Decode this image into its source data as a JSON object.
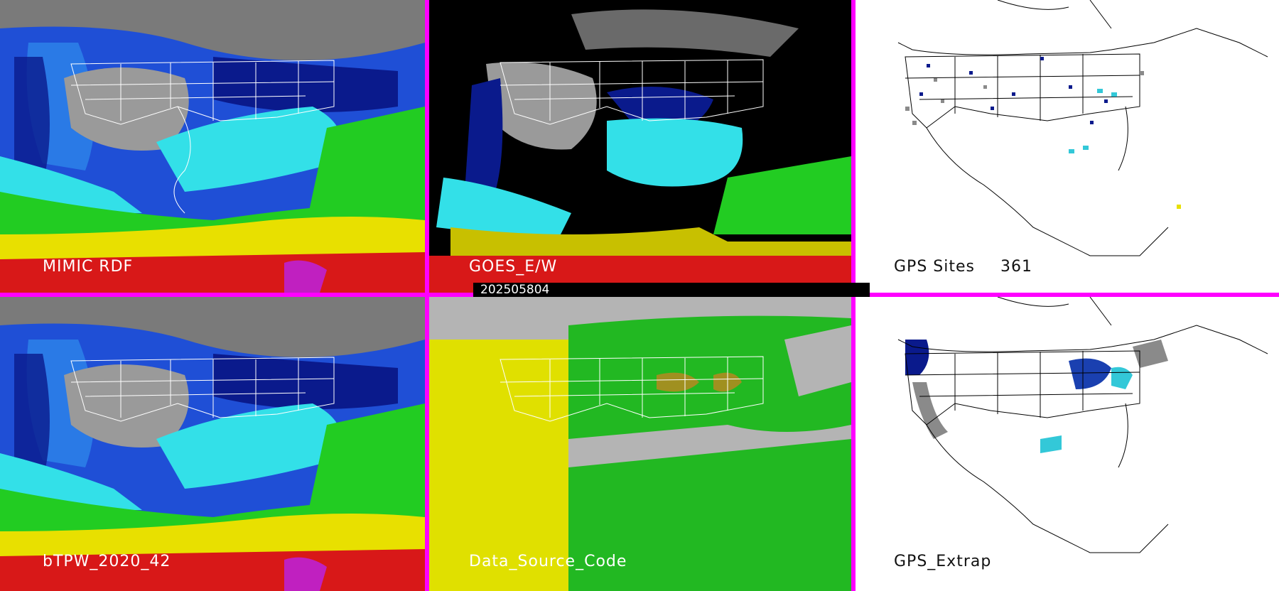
{
  "panels": [
    {
      "id": "mimic",
      "label": "MIMIC RDF"
    },
    {
      "id": "goes",
      "label": "GOES_E/W"
    },
    {
      "id": "gps-sites",
      "label": "GPS Sites",
      "count": "361"
    },
    {
      "id": "btpw",
      "label": "bTPW_2020_42"
    },
    {
      "id": "dsc",
      "label": "Data_Source_Code"
    },
    {
      "id": "gps-extrap",
      "label": "GPS_Extrap"
    }
  ],
  "timestamp": "202505804",
  "colors": {
    "divider": "#ff00ff",
    "dry_gray": "#a0a0a0",
    "navy": "#0a1a8c",
    "blue": "#1f4fd6",
    "cyan": "#33e0e8",
    "green": "#22cc22",
    "yellow": "#e8e000",
    "red": "#d81818",
    "magenta": "#c020c0",
    "dsc_gray": "#b4b4b4",
    "dsc_yellow": "#e0e000",
    "dsc_green": "#22b822",
    "dsc_olive": "#a09020"
  }
}
